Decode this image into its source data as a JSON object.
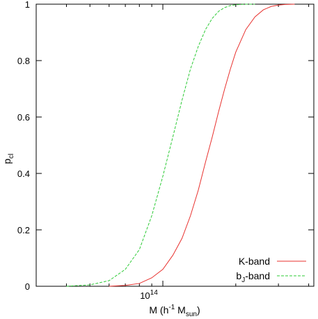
{
  "chart_data": {
    "type": "line",
    "xscale": "log",
    "xlim": [
      30000000000000,
      420000000000000
    ],
    "ylim": [
      0,
      1
    ],
    "grid": false,
    "legend_position": "bottom-right",
    "ylabel": {
      "base": "p",
      "sub": "cl"
    },
    "xlabel": {
      "prefix": "M (h",
      "sup": "-1",
      "middle": " M",
      "sub": "sun",
      "suffix": ")"
    },
    "y_ticks": [
      "0",
      "0.2",
      "0.4",
      "0.6",
      "0.8",
      "1"
    ],
    "x_tick_major": {
      "value": 100000000000000,
      "base": "10",
      "exp": "14"
    },
    "series": [
      {
        "name": "K-band",
        "label_main": "K-band",
        "color": "#e8312e",
        "dash": "solid",
        "x": [
          60000000000000,
          70000000000000,
          80000000000000,
          90000000000000,
          100000000000000,
          110000000000000,
          120000000000000,
          130000000000000,
          140000000000000,
          150000000000000,
          160000000000000,
          170000000000000,
          180000000000000,
          190000000000000,
          200000000000000,
          220000000000000,
          240000000000000,
          260000000000000,
          280000000000000,
          300000000000000,
          320000000000000,
          350000000000000
        ],
        "y": [
          0.0,
          0.003,
          0.01,
          0.03,
          0.06,
          0.11,
          0.17,
          0.25,
          0.34,
          0.44,
          0.53,
          0.62,
          0.7,
          0.77,
          0.83,
          0.91,
          0.955,
          0.98,
          0.992,
          0.997,
          0.999,
          1.0
        ]
      },
      {
        "name": "b_J-band",
        "label_main": "b",
        "label_sub": "J",
        "label_suffix": "-band",
        "color": "#2ecb37",
        "dash": "dashed",
        "x": [
          40000000000000,
          50000000000000,
          60000000000000,
          70000000000000,
          80000000000000,
          90000000000000,
          100000000000000,
          110000000000000,
          120000000000000,
          130000000000000,
          140000000000000,
          150000000000000,
          160000000000000,
          170000000000000,
          180000000000000,
          190000000000000,
          200000000000000,
          220000000000000,
          240000000000000
        ],
        "y": [
          0.0,
          0.005,
          0.02,
          0.06,
          0.13,
          0.25,
          0.39,
          0.53,
          0.66,
          0.77,
          0.85,
          0.91,
          0.95,
          0.975,
          0.988,
          0.995,
          0.998,
          1.0,
          1.0
        ]
      }
    ]
  }
}
